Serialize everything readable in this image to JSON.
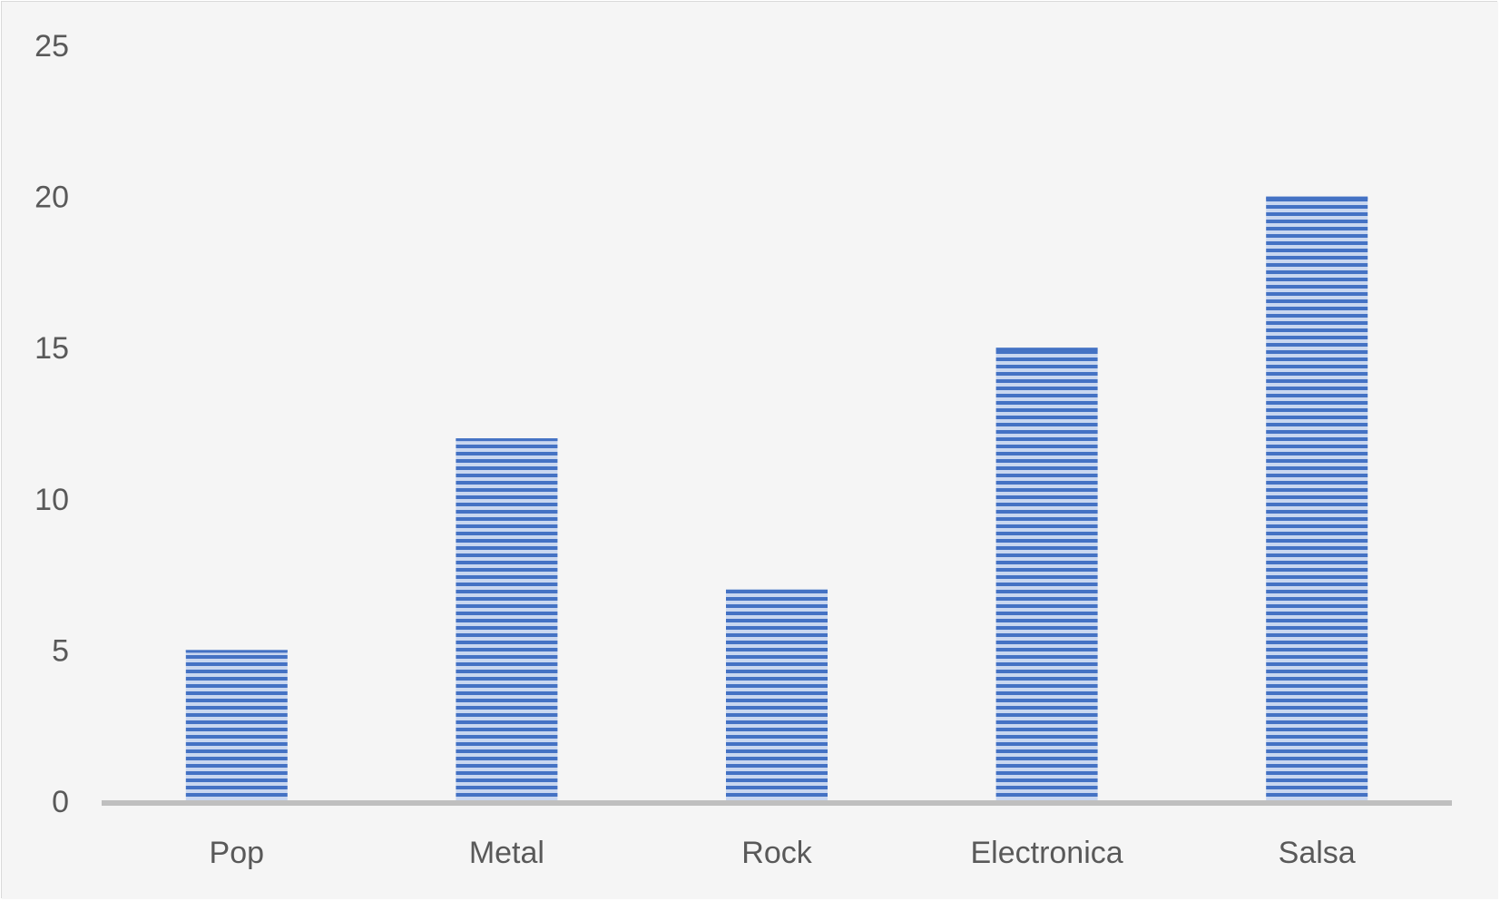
{
  "chart_data": {
    "type": "bar",
    "title": "",
    "xlabel": "",
    "ylabel": "",
    "categories": [
      "Pop",
      "Metal",
      "Rock",
      "Electronica",
      "Salsa"
    ],
    "values": [
      5,
      12,
      7,
      15,
      20
    ],
    "ylim": [
      0,
      25
    ],
    "yticks": [
      0,
      5,
      10,
      15,
      20,
      25
    ],
    "grid": false,
    "legend": "none",
    "colors": {
      "bar": "#4472c4",
      "bar_stripe_light": "#c9d7f0",
      "background": "#f5f5f5",
      "axis": "#bfbfbf",
      "text": "#595959",
      "border": "#d9d9d9"
    }
  }
}
